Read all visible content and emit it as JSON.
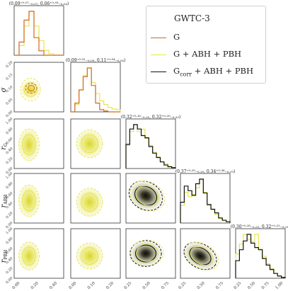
{
  "legend": {
    "title": "GWTC-3",
    "entries": [
      {
        "label": "G",
        "color": "#d2691e"
      },
      {
        "label": "G + ABH + PBH",
        "color": "#e6e64d"
      },
      {
        "label": "G",
        "sub": "corr",
        "suffix": " + ABH + PBH",
        "color": "#111111"
      }
    ]
  },
  "colors": {
    "orange": "#d2691e",
    "yellow": "#e6e64d",
    "black": "#111111"
  },
  "chart_data": {
    "type": "corner",
    "parameters": [
      "μ",
      "σ",
      "r_G",
      "r_ABH",
      "r_PBH"
    ],
    "axis_labels": [
      {
        "main": "μ"
      },
      {
        "main": "σ"
      },
      {
        "main": "r",
        "sub": "G"
      },
      {
        "main": "r",
        "sub": "ABH"
      },
      {
        "main": "r",
        "sub": "PBH"
      }
    ],
    "tick_labels": {
      "mu": [
        "0.00",
        "0.20",
        "0.40"
      ],
      "sigma": [
        "0.00",
        "0.10",
        "0.20"
      ],
      "r": [
        "0.25",
        "0.50",
        "0.75",
        "1.00"
      ],
      "r_y": [
        "0.00",
        "0.20",
        "0.40",
        "0.60",
        "0.80",
        "1.00"
      ],
      "sigma_y": [
        "0.00",
        "0.05",
        "0.10",
        "0.15",
        "0.20"
      ]
    },
    "summaries": [
      {
        "param": "μ",
        "text": "(0.09⁺⁰·⁰⁷₋₀.₀₇, 0.06⁺⁰·⁰³₋₀.₀₄)"
      },
      {
        "param": "σ",
        "text": "(0.09⁺⁰·³¹₋₀.₀₉, 0.11⁺⁰·⁰⁴₋₀.₀₄)"
      },
      {
        "param": "r_G",
        "text": "(0.32⁺⁰·¹⁶₋₀.₂₀, 0.32⁺⁰·²⁰₋₀.₂₀)"
      },
      {
        "param": "r_ABH",
        "text": "(0.37⁺⁰·²⁹₋₀.₂₀, 0.34⁺⁰·³⁶₋₀.₂₉)"
      },
      {
        "param": "r_PBH",
        "text": "(0.30⁺⁰·²⁸₋₀.₂₅, 0.32⁺⁰·²²₋₀.₂₁)"
      }
    ],
    "marginals": {
      "mu": {
        "range": [
          0.0,
          0.5
        ],
        "bins": [
          0.0,
          0.025,
          0.05,
          0.075,
          0.1,
          0.125,
          0.15,
          0.175,
          0.2,
          0.225,
          0.25
        ],
        "G": [
          0,
          3,
          8,
          10,
          4,
          1,
          0,
          0,
          0,
          0
        ],
        "G_ABH_PBH": [
          0,
          2,
          6,
          9,
          6,
          3,
          1,
          0.3,
          0,
          0
        ]
      },
      "sigma": {
        "range": [
          0.0,
          0.25
        ],
        "bins": [
          0.0,
          0.02,
          0.04,
          0.06,
          0.08,
          0.1,
          0.12,
          0.14,
          0.16,
          0.18,
          0.2,
          0.22,
          0.24
        ],
        "G": [
          0,
          2,
          5,
          8,
          10,
          6,
          2,
          0.5,
          0.2,
          0,
          0,
          0
        ],
        "G_ABH_PBH": [
          0,
          1,
          3,
          5,
          6,
          4,
          2.5,
          1.5,
          1,
          0.6,
          0.4,
          0.3
        ]
      },
      "r_G": {
        "range": [
          0.0,
          1.0
        ],
        "G_ABH_PBH": [
          5,
          8,
          9.5,
          8,
          8.5,
          6.5,
          5,
          3.5,
          2.5,
          1.5,
          1,
          0.5,
          0.2
        ],
        "G_corr_ABH_PBH": [
          5.5,
          9,
          10,
          9,
          7.5,
          7,
          5,
          3.5,
          2.5,
          1.5,
          0.8,
          0.4,
          0.2
        ]
      },
      "r_ABH": {
        "range": [
          0.0,
          1.0
        ],
        "G_ABH_PBH": [
          4,
          7,
          6,
          6.5,
          8,
          10,
          7,
          4,
          3,
          2,
          1,
          0.6,
          0.3
        ],
        "G_corr_ABH_PBH": [
          4.5,
          8,
          7,
          6,
          8.5,
          9.5,
          6.5,
          4,
          3,
          2.2,
          1.1,
          0.6,
          0.3
        ]
      },
      "r_PBH": {
        "range": [
          0.0,
          1.0
        ],
        "G_ABH_PBH": [
          5,
          7,
          9,
          8,
          7.5,
          9,
          6,
          4.5,
          3,
          2,
          1,
          0.5,
          0.2
        ],
        "G_corr_ABH_PBH": [
          4,
          6.5,
          8.5,
          10,
          8,
          7,
          6.5,
          4.5,
          3,
          2,
          1.1,
          0.5,
          0.2
        ]
      }
    }
  }
}
